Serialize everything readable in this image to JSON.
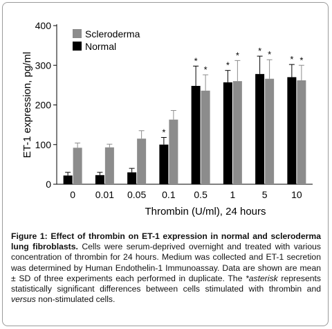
{
  "chart_data": {
    "type": "bar",
    "categories": [
      "0",
      "0.01",
      "0.05",
      "0.1",
      "0.5",
      "1",
      "5",
      "10"
    ],
    "series": [
      {
        "name": "Normal",
        "color": "#000000",
        "values": [
          22,
          23,
          30,
          100,
          248,
          257,
          278,
          270
        ],
        "errors": [
          8,
          7,
          10,
          18,
          50,
          30,
          45,
          32
        ],
        "significant": [
          false,
          false,
          false,
          true,
          true,
          true,
          true,
          true
        ]
      },
      {
        "name": "Scleroderma",
        "color": "#8c8c8c",
        "values": [
          92,
          93,
          115,
          163,
          236,
          260,
          266,
          262
        ],
        "errors": [
          12,
          8,
          20,
          23,
          40,
          52,
          48,
          38
        ],
        "significant": [
          false,
          false,
          false,
          false,
          true,
          true,
          true,
          true
        ]
      }
    ],
    "legend_order": [
      "Scleroderma",
      "Normal"
    ],
    "xlabel": "Thrombin (U/ml), 24 hours",
    "ylabel": "ET-1 expression, pg/ml",
    "ylim": [
      0,
      400
    ],
    "yticks": [
      0,
      100,
      200,
      300,
      400
    ],
    "legend_position": "top-left",
    "significance_marker": "*"
  },
  "caption": {
    "label": "Figure 1:",
    "title": "Effect of thrombin on ET-1 expression in normal and scleroderma lung fibroblasts.",
    "text1": "Cells were serum-deprived overnight and treated with various concentration of thrombin for 24 hours. Medium was collected and ET-1 secretion was determined by Human Endothelin-1 Immunoassay. Data are shown are mean ± SD of three experiments each performed in duplicate. The ",
    "asterisk_term": "*asterisk",
    "text2": " represents statistically significant differences between cells stimulated with thrombin and ",
    "versus_term": "versus",
    "text3": " non-stimulated cells."
  }
}
